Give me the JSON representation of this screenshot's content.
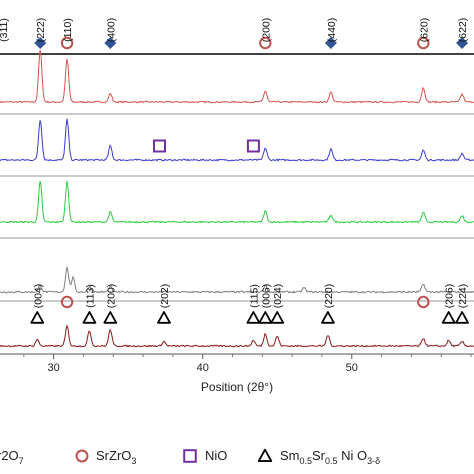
{
  "chart_data": {
    "type": "line",
    "xlabel": "Position (2θ°)",
    "xlim": [
      26.4,
      58.2
    ],
    "xticks": [
      30,
      40,
      50
    ],
    "grid": false,
    "legend_position": "bottom",
    "legend": [
      {
        "name": "r2O7",
        "sub": "7",
        "base": "r2O",
        "marker": "diamond",
        "color": "#2f5597"
      },
      {
        "name": "SrZrO3",
        "base": "SrZrO",
        "sub": "3",
        "marker": "circle",
        "color": "#c0504d"
      },
      {
        "name": "NiO",
        "base": "NiO",
        "sub": "",
        "marker": "square",
        "color": "#7030a0"
      },
      {
        "name": "Sm0.5Sr0.5 Ni O3-δ",
        "marker": "triangle",
        "color": "#000000",
        "parts": [
          [
            "Sm",
            ""
          ],
          [
            "0.5",
            "sub"
          ],
          [
            "Sr",
            ""
          ],
          [
            "0.5",
            "sub"
          ],
          [
            " Ni O",
            ""
          ],
          [
            "3-δ",
            "sub"
          ]
        ]
      }
    ],
    "series": [
      {
        "color": "#d9534f",
        "peaks": [
          [
            29.1,
            95
          ],
          [
            30.9,
            78
          ],
          [
            33.8,
            15
          ],
          [
            44.2,
            20
          ],
          [
            48.6,
            18
          ],
          [
            54.8,
            26
          ],
          [
            57.4,
            14
          ]
        ]
      },
      {
        "color": "#3a3acd",
        "peaks": [
          [
            29.1,
            74
          ],
          [
            30.9,
            74
          ],
          [
            33.8,
            26
          ],
          [
            44.2,
            22
          ],
          [
            48.6,
            20
          ],
          [
            54.8,
            18
          ],
          [
            57.4,
            12
          ]
        ]
      },
      {
        "color": "#2ecc40",
        "peaks": [
          [
            29.1,
            74
          ],
          [
            30.9,
            74
          ],
          [
            33.8,
            18
          ],
          [
            44.2,
            20
          ],
          [
            48.6,
            13
          ],
          [
            54.8,
            17
          ],
          [
            57.4,
            12
          ]
        ]
      },
      {
        "color": "#7f7f7f",
        "peaks": [
          [
            29.1,
            12
          ],
          [
            30.9,
            45
          ],
          [
            31.3,
            26
          ],
          [
            32.4,
            10
          ],
          [
            33.8,
            10
          ],
          [
            44.2,
            12
          ],
          [
            46.8,
            8
          ],
          [
            54.8,
            14
          ]
        ]
      },
      {
        "color": "#8b1a1a",
        "peaks": [
          [
            28.9,
            12
          ],
          [
            30.9,
            36
          ],
          [
            32.4,
            28
          ],
          [
            33.8,
            30
          ],
          [
            37.4,
            8
          ],
          [
            43.4,
            10
          ],
          [
            44.2,
            22
          ],
          [
            45.0,
            18
          ],
          [
            48.4,
            20
          ],
          [
            54.8,
            14
          ],
          [
            56.5,
            10
          ],
          [
            57.4,
            8
          ]
        ]
      }
    ],
    "annotations_top": [
      {
        "label": "(222)",
        "x": 29.1,
        "marker": "diamond"
      },
      {
        "label": "(110)",
        "x": 30.9,
        "marker": "circle"
      },
      {
        "label": "(400)",
        "x": 33.8,
        "marker": "diamond"
      },
      {
        "label": "(200)",
        "x": 44.2,
        "marker": "circle"
      },
      {
        "label": "(440)",
        "x": 48.6,
        "marker": "diamond"
      },
      {
        "label": "(620)",
        "x": 54.8,
        "marker": "circle"
      },
      {
        "label": "(622)",
        "x": 57.4,
        "marker": "diamond"
      },
      {
        "label": "(311)",
        "x": 26.6,
        "marker": ""
      }
    ],
    "annotations_nio": [
      {
        "x": 37.1,
        "marker": "square"
      },
      {
        "x": 43.4,
        "marker": "square"
      }
    ],
    "annotations_bottom": [
      {
        "label": "(004)",
        "x": 28.9,
        "marker": "triangle"
      },
      {
        "label": "",
        "x": 30.9,
        "marker": "circle"
      },
      {
        "label": "(113)",
        "x": 32.4,
        "marker": "triangle"
      },
      {
        "label": "(200)",
        "x": 33.8,
        "marker": "triangle"
      },
      {
        "label": "(202)",
        "x": 37.4,
        "marker": "triangle"
      },
      {
        "label": "(115)",
        "x": 43.4,
        "marker": "triangle"
      },
      {
        "label": "(006)",
        "x": 44.2,
        "marker": "triangle"
      },
      {
        "label": "(024)",
        "x": 45.0,
        "marker": "triangle"
      },
      {
        "label": "(220)",
        "x": 48.4,
        "marker": "triangle"
      },
      {
        "label": "",
        "x": 54.8,
        "marker": "circle"
      },
      {
        "label": "(206)",
        "x": 56.5,
        "marker": "triangle"
      },
      {
        "label": "(224)",
        "x": 57.4,
        "marker": "triangle"
      }
    ]
  }
}
